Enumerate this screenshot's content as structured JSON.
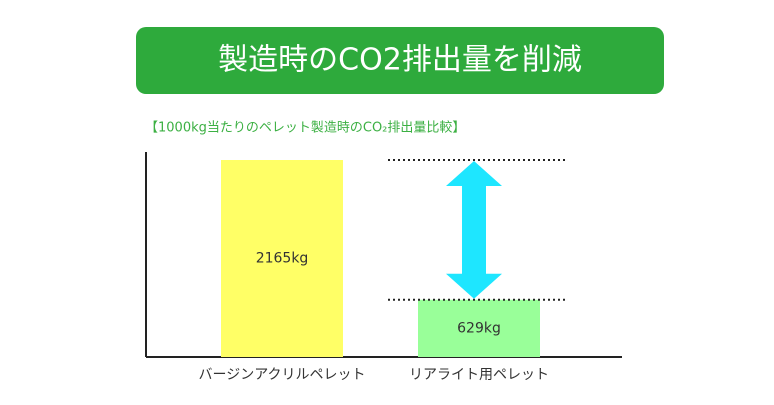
{
  "chart_data": {
    "type": "bar",
    "title": "製造時のCO2排出量を削減",
    "subtitle": "【1000kg当たりのペレット製造時のCO₂排出量比較】",
    "categories": [
      "バージンアクリルペレット",
      "リアライト用ペレット"
    ],
    "values": [
      2165,
      629
    ],
    "value_labels": [
      "2165kg",
      "629kg"
    ],
    "colors": [
      "#ffff66",
      "#99ff99"
    ]
  }
}
